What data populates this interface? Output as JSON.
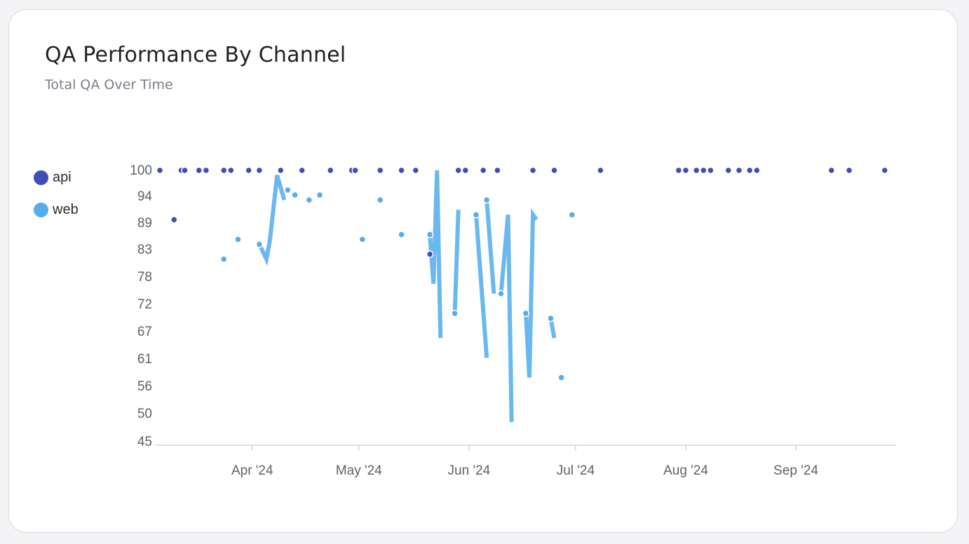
{
  "card": {
    "title": "QA Performance By Channel",
    "subtitle": "Total QA Over Time"
  },
  "chart_data": {
    "type": "line",
    "ylim": [
      45,
      100
    ],
    "y_ticks": [
      "100",
      "94",
      "89",
      "83",
      "78",
      "72",
      "67",
      "61",
      "56",
      "50",
      "45"
    ],
    "x_ticks": [
      {
        "label": "Apr '24",
        "date": "2024-04-01"
      },
      {
        "label": "May '24",
        "date": "2024-05-01"
      },
      {
        "label": "Jun '24",
        "date": "2024-06-01"
      },
      {
        "label": "Jul '24",
        "date": "2024-07-01"
      },
      {
        "label": "Aug '24",
        "date": "2024-08-01"
      },
      {
        "label": "Sep '24",
        "date": "2024-09-01"
      }
    ],
    "xlim": [
      "2024-03-06",
      "2024-09-29"
    ],
    "legend_position": "left",
    "series": [
      {
        "name": "api",
        "color": "#3f4db5",
        "points": [
          {
            "x": "2024-03-06",
            "y": 100
          },
          {
            "x": "2024-03-10",
            "y": 90
          },
          {
            "x": "2024-03-12",
            "y": 100
          },
          {
            "x": "2024-03-13",
            "y": 100
          },
          {
            "x": "2024-03-17",
            "y": 100
          },
          {
            "x": "2024-03-19",
            "y": 100
          },
          {
            "x": "2024-03-24",
            "y": 100
          },
          {
            "x": "2024-03-26",
            "y": 100
          },
          {
            "x": "2024-03-31",
            "y": 100
          },
          {
            "x": "2024-04-03",
            "y": 100
          },
          {
            "x": "2024-04-09",
            "y": 100
          },
          {
            "x": "2024-04-15",
            "y": 100
          },
          {
            "x": "2024-04-23",
            "y": 100
          },
          {
            "x": "2024-04-29",
            "y": 100
          },
          {
            "x": "2024-04-30",
            "y": 100
          },
          {
            "x": "2024-05-07",
            "y": 100
          },
          {
            "x": "2024-05-13",
            "y": 100
          },
          {
            "x": "2024-05-17",
            "y": 100
          },
          {
            "x": "2024-05-21",
            "y": 83
          },
          {
            "x": "2024-05-29",
            "y": 100
          },
          {
            "x": "2024-05-31",
            "y": 100
          },
          {
            "x": "2024-06-05",
            "y": 100
          },
          {
            "x": "2024-06-09",
            "y": 100
          },
          {
            "x": "2024-06-19",
            "y": 100
          },
          {
            "x": "2024-06-25",
            "y": 100
          },
          {
            "x": "2024-07-08",
            "y": 100
          },
          {
            "x": "2024-07-30",
            "y": 100
          },
          {
            "x": "2024-08-01",
            "y": 100
          },
          {
            "x": "2024-08-04",
            "y": 100
          },
          {
            "x": "2024-08-06",
            "y": 100
          },
          {
            "x": "2024-08-08",
            "y": 100
          },
          {
            "x": "2024-08-13",
            "y": 100
          },
          {
            "x": "2024-08-16",
            "y": 100
          },
          {
            "x": "2024-08-19",
            "y": 100
          },
          {
            "x": "2024-08-21",
            "y": 100
          },
          {
            "x": "2024-09-11",
            "y": 100
          },
          {
            "x": "2024-09-16",
            "y": 100
          },
          {
            "x": "2024-09-26",
            "y": 100
          }
        ]
      },
      {
        "name": "web",
        "color": "#56aced",
        "segments": [
          [
            {
              "x": "2024-03-13",
              "y": 100
            }
          ],
          [
            {
              "x": "2024-03-24",
              "y": 82
            }
          ],
          [
            {
              "x": "2024-03-28",
              "y": 86
            }
          ],
          [
            {
              "x": "2024-04-03",
              "y": 85
            },
            {
              "x": "2024-04-05",
              "y": 82
            },
            {
              "x": "2024-04-06",
              "y": 86
            },
            {
              "x": "2024-04-08",
              "y": 99
            },
            {
              "x": "2024-04-10",
              "y": 94
            }
          ],
          [
            {
              "x": "2024-04-11",
              "y": 96
            }
          ],
          [
            {
              "x": "2024-04-13",
              "y": 95
            }
          ],
          [
            {
              "x": "2024-04-17",
              "y": 94
            }
          ],
          [
            {
              "x": "2024-04-20",
              "y": 95
            }
          ],
          [
            {
              "x": "2024-05-02",
              "y": 86
            }
          ],
          [
            {
              "x": "2024-05-07",
              "y": 94
            }
          ],
          [
            {
              "x": "2024-05-13",
              "y": 87
            }
          ],
          [
            {
              "x": "2024-05-21",
              "y": 87
            },
            {
              "x": "2024-05-22",
              "y": 77
            },
            {
              "x": "2024-05-23",
              "y": 100
            },
            {
              "x": "2024-05-24",
              "y": 66
            }
          ],
          [
            {
              "x": "2024-05-28",
              "y": 71
            },
            {
              "x": "2024-05-29",
              "y": 92
            }
          ],
          [
            {
              "x": "2024-06-03",
              "y": 91
            },
            {
              "x": "2024-06-06",
              "y": 62
            }
          ],
          [
            {
              "x": "2024-06-06",
              "y": 94
            },
            {
              "x": "2024-06-08",
              "y": 75
            }
          ],
          [
            {
              "x": "2024-06-10",
              "y": 75
            },
            {
              "x": "2024-06-12",
              "y": 91
            },
            {
              "x": "2024-06-13",
              "y": 49
            }
          ],
          [
            {
              "x": "2024-06-17",
              "y": 71
            },
            {
              "x": "2024-06-18",
              "y": 58
            },
            {
              "x": "2024-06-19",
              "y": 91
            },
            {
              "x": "2024-06-20",
              "y": 90
            }
          ],
          [
            {
              "x": "2024-06-24",
              "y": 70
            },
            {
              "x": "2024-06-25",
              "y": 66
            }
          ],
          [
            {
              "x": "2024-06-27",
              "y": 58
            }
          ],
          [
            {
              "x": "2024-06-30",
              "y": 91
            }
          ]
        ]
      }
    ]
  }
}
